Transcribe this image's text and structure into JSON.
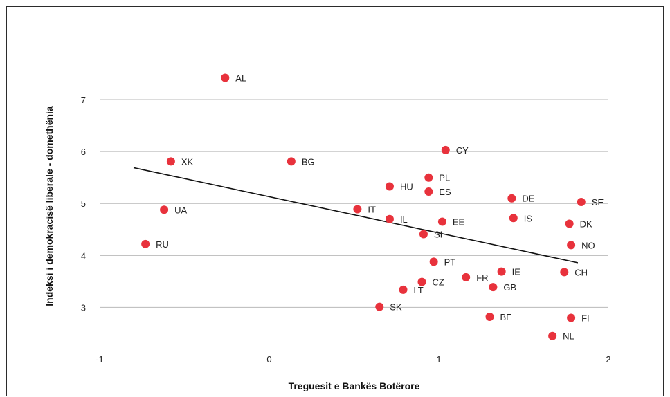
{
  "chart_data": {
    "type": "scatter",
    "xlabel": "Treguesit e Bankës Botërore",
    "ylabel": "Indeksi i demokracisë liberale - domethënia",
    "xlim": [
      -1,
      2
    ],
    "ylim": [
      2.3,
      7.6
    ],
    "x_ticks": [
      -1,
      0,
      1,
      2
    ],
    "y_ticks": [
      3,
      4,
      5,
      6,
      7
    ],
    "grid": "horizontal",
    "point_color": "#e8323c",
    "trend_color": "#111111",
    "points": [
      {
        "label": "AL",
        "x": -0.26,
        "y": 7.42
      },
      {
        "label": "XK",
        "x": -0.58,
        "y": 5.81
      },
      {
        "label": "BG",
        "x": 0.13,
        "y": 5.81
      },
      {
        "label": "CY",
        "x": 1.04,
        "y": 6.03
      },
      {
        "label": "PL",
        "x": 0.94,
        "y": 5.5
      },
      {
        "label": "HU",
        "x": 0.71,
        "y": 5.33
      },
      {
        "label": "ES",
        "x": 0.94,
        "y": 5.23
      },
      {
        "label": "DE",
        "x": 1.43,
        "y": 5.1
      },
      {
        "label": "SE",
        "x": 1.84,
        "y": 5.03
      },
      {
        "label": "UA",
        "x": -0.62,
        "y": 4.88
      },
      {
        "label": "IT",
        "x": 0.52,
        "y": 4.89
      },
      {
        "label": "IL",
        "x": 0.71,
        "y": 4.7
      },
      {
        "label": "EE",
        "x": 1.02,
        "y": 4.65
      },
      {
        "label": "IS",
        "x": 1.44,
        "y": 4.72
      },
      {
        "label": "DK",
        "x": 1.77,
        "y": 4.61
      },
      {
        "label": "SI",
        "x": 0.91,
        "y": 4.41
      },
      {
        "label": "RU",
        "x": -0.73,
        "y": 4.22
      },
      {
        "label": "NO",
        "x": 1.78,
        "y": 4.2
      },
      {
        "label": "PT",
        "x": 0.97,
        "y": 3.88
      },
      {
        "label": "IE",
        "x": 1.37,
        "y": 3.69
      },
      {
        "label": "CH",
        "x": 1.74,
        "y": 3.68
      },
      {
        "label": "FR",
        "x": 1.16,
        "y": 3.58
      },
      {
        "label": "CZ",
        "x": 0.9,
        "y": 3.49
      },
      {
        "label": "GB",
        "x": 1.32,
        "y": 3.39
      },
      {
        "label": "LT",
        "x": 0.79,
        "y": 3.34
      },
      {
        "label": "SK",
        "x": 0.65,
        "y": 3.01
      },
      {
        "label": "BE",
        "x": 1.3,
        "y": 2.82
      },
      {
        "label": "FI",
        "x": 1.78,
        "y": 2.8
      },
      {
        "label": "NL",
        "x": 1.67,
        "y": 2.45
      }
    ],
    "trendline": {
      "x": [
        -0.8,
        1.82
      ],
      "y": [
        5.69,
        3.86
      ]
    }
  }
}
